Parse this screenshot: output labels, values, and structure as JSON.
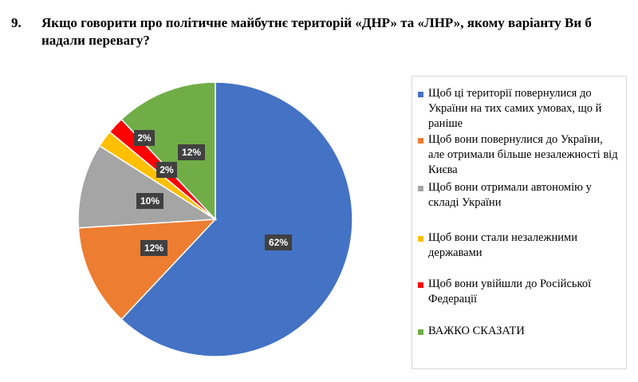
{
  "question": {
    "number": "9.",
    "text": "Якщо говорити про політичне майбутнє територій «ДНР» та «ЛНР», якому варіанту Ви б надали перевагу?"
  },
  "chart_data": {
    "type": "pie",
    "title": "",
    "legend_position": "right",
    "slices": [
      {
        "name": "Щоб ці території  повернулися  до України на тих самих умовах, що й раніше",
        "value": 62,
        "label": "62%",
        "color": "#4472C4"
      },
      {
        "name": "Щоб вони  повернулися до України, але отримали більше незалежності від Києва",
        "value": 12,
        "label": "12%",
        "color": "#ED7D31"
      },
      {
        "name": "Щоб вони отримали автономію у складі України",
        "value": 10,
        "label": "10%",
        "color": "#A5A5A5"
      },
      {
        "name": "Щоб вони  стали незалежними державами",
        "value": 2,
        "label": "2%",
        "color": "#FFC000"
      },
      {
        "name": "Щоб вони увійшли до Російської Федерації",
        "value": 2,
        "label": "2%",
        "color": "#FF0000"
      },
      {
        "name": "ВАЖКО СКАЗАТИ",
        "value": 12,
        "label": "12%",
        "color": "#70AD47"
      }
    ]
  }
}
